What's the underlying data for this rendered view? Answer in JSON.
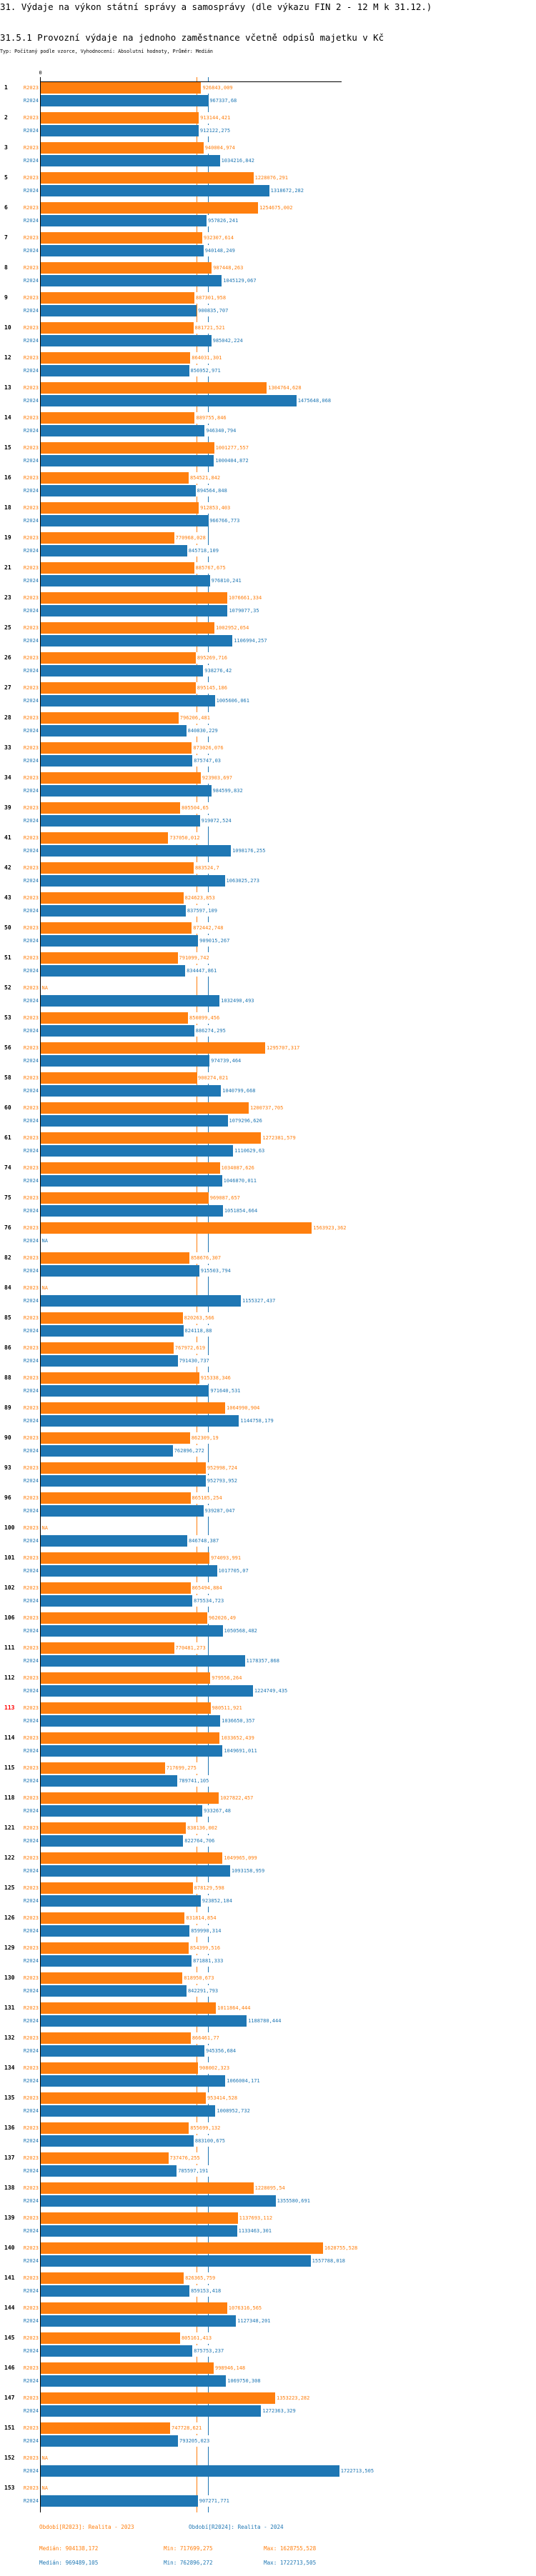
{
  "header": {
    "title": "31. Výdaje na výkon státní správy a samosprávy (dle výkazu FIN 2 - 12 M k 31.12.)",
    "subtitle": "31.5.1 Provozní výdaje na jednoho zaměstnance včetně odpisů majetku v Kč",
    "typ": "Typ: Počítaný podle vzorce, Vyhodnocení: Absolutní hodnoty, Průměr: Medián"
  },
  "chart_data": {
    "type": "bar",
    "orientation": "horizontal",
    "x_tick_label": "0",
    "na_label": "NA",
    "highlighted_category": "113",
    "colors": {
      "R2023": "#ff7f0e",
      "R2024": "#1f77b4",
      "highlight": "#ff0000"
    },
    "categories": [
      "1",
      "2",
      "3",
      "5",
      "6",
      "7",
      "8",
      "9",
      "10",
      "12",
      "13",
      "14",
      "15",
      "16",
      "18",
      "19",
      "21",
      "23",
      "25",
      "26",
      "27",
      "28",
      "33",
      "34",
      "39",
      "41",
      "42",
      "43",
      "50",
      "51",
      "52",
      "53",
      "56",
      "58",
      "60",
      "61",
      "74",
      "75",
      "76",
      "82",
      "84",
      "85",
      "86",
      "88",
      "89",
      "90",
      "93",
      "96",
      "100",
      "101",
      "102",
      "106",
      "111",
      "112",
      "113",
      "114",
      "115",
      "118",
      "121",
      "122",
      "125",
      "126",
      "129",
      "130",
      "131",
      "132",
      "134",
      "135",
      "136",
      "137",
      "138",
      "139",
      "140",
      "141",
      "144",
      "145",
      "146",
      "147",
      "151",
      "152",
      "153"
    ],
    "series": [
      {
        "name": "R2023",
        "values": [
          926843.009,
          913144.421,
          940004.974,
          1228076.291,
          1254675.002,
          932307.614,
          987448.263,
          887301.958,
          881721.521,
          864031.301,
          1304764.628,
          889755.846,
          1001277.557,
          854521.842,
          912853.403,
          770968.028,
          885767.675,
          1076661.334,
          1002952.054,
          895269.716,
          895145.186,
          796206.481,
          873026.076,
          923903.697,
          805504.65,
          737050.012,
          883524.7,
          824623.853,
          872442.748,
          791099.742,
          null,
          850899.456,
          1295707.317,
          900274.021,
          1200737.705,
          1272381.579,
          1034087.626,
          969087.657,
          1563923.362,
          858676.307,
          null,
          820263.566,
          767972.619,
          915338.346,
          1064990.904,
          862309.19,
          952998.724,
          865185.254,
          null,
          974093.991,
          865494.884,
          962026.49,
          770481.273,
          979556.264,
          980511.921,
          1033652.439,
          717699.275,
          1027822.457,
          838136.002,
          1049965.099,
          878129.598,
          831814.854,
          854399.516,
          818950.673,
          1011864.444,
          866461.77,
          908002.323,
          953414.528,
          855699.132,
          737476.255,
          1228095.54,
          1137693.112,
          1628755.528,
          826365.759,
          1076316.565,
          805161.413,
          998946.148,
          1353223.282,
          747728.621,
          null,
          null
        ]
      },
      {
        "name": "R2024",
        "values": [
          967337.68,
          912122.275,
          1034216.842,
          1318672.282,
          957826.241,
          940148.249,
          1045129.067,
          900835.707,
          985042.224,
          856952.971,
          1475648.068,
          946340.794,
          1000404.872,
          894564.848,
          966766.773,
          845718.109,
          976810.241,
          1079077.35,
          1106994.257,
          938276.42,
          1005606.061,
          840830.229,
          875747.03,
          984599.832,
          919072.524,
          1098176.255,
          1063025.273,
          837597.109,
          909015.267,
          834447.861,
          1032490.493,
          886274.295,
          974739.464,
          1040799.668,
          1079296.626,
          1110629.63,
          1046870.011,
          1051854.664,
          null,
          915503.794,
          1155327.437,
          824118.88,
          791430.737,
          971640.531,
          1144758.179,
          762896.272,
          952793.952,
          939287.047,
          846748.387,
          1017705.07,
          875534.723,
          1050568.482,
          1178357.868,
          1224749.435,
          1036650.357,
          1049691.011,
          789741.105,
          933267.48,
          822764.706,
          1093158.959,
          923852.184,
          859990.314,
          871881.333,
          842291.793,
          1188780.444,
          945356.684,
          1066004.171,
          1008952.732,
          883100.675,
          785597.191,
          1355580.691,
          1133463.301,
          1557788.018,
          859153.418,
          1127348.201,
          875753.237,
          1069750.308,
          1272363.329,
          793205.023,
          1722713.505,
          907271.771
        ]
      }
    ],
    "medians": {
      "R2023": 904138.172,
      "R2024": 969489.105
    }
  },
  "legend": {
    "r2023": "Období[R2023]: Realita - 2023",
    "r2024": "Období[R2024]: Realita - 2024",
    "stats_r2023": {
      "median": "Medián: 904138,172",
      "min": "Min: 717699,275",
      "max": "Max: 1628755,528"
    },
    "stats_r2024": {
      "median": "Medián: 969489,105",
      "min": "Min: 762896,272",
      "max": "Max: 1722713,505"
    }
  }
}
